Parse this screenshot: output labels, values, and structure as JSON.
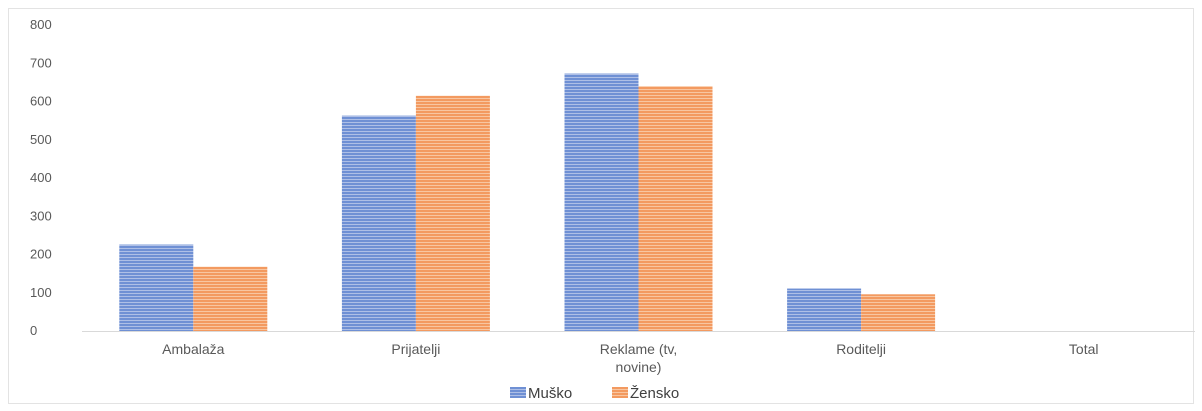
{
  "chart_data": {
    "type": "bar",
    "title": "",
    "xlabel": "",
    "ylabel": "",
    "categories": [
      "Ambalaža",
      "Prijatelji",
      "Reklame (tv, novine)",
      "Roditelji",
      "Total"
    ],
    "category_lines": [
      [
        "Ambalaža"
      ],
      [
        "Prijatelji"
      ],
      [
        "Reklame (tv,",
        "novine)"
      ],
      [
        "Roditelji"
      ],
      [
        "Total"
      ]
    ],
    "series": [
      {
        "name": "Muško",
        "color": "#7a9ad8",
        "values": [
          226,
          563,
          673,
          111,
          null
        ]
      },
      {
        "name": "Žensko",
        "color": "#f4a26d",
        "values": [
          168,
          615,
          640,
          96,
          null
        ]
      }
    ],
    "ylim": [
      0,
      800
    ],
    "yticks": [
      0,
      100,
      200,
      300,
      400,
      500,
      600,
      700,
      800
    ],
    "grid": false,
    "legend_position": "bottom"
  }
}
